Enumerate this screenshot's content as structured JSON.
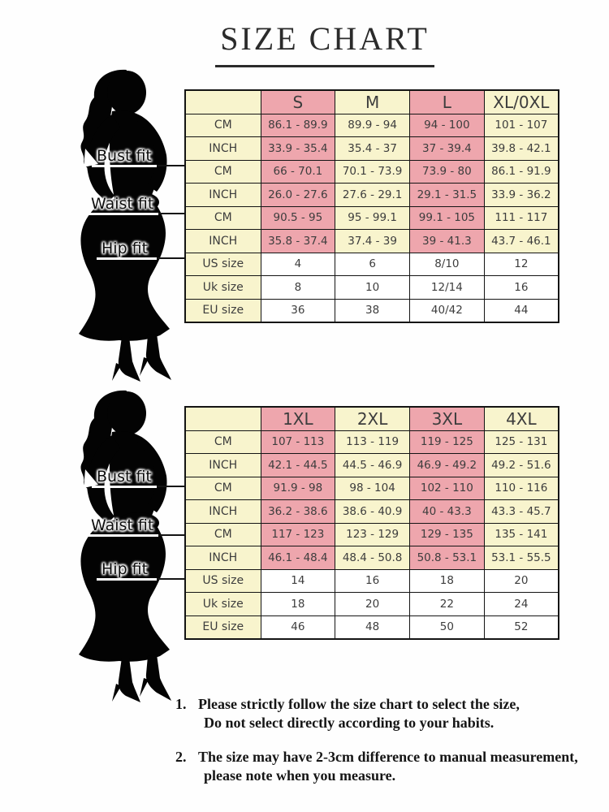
{
  "title": "SIZE CHART",
  "colors": {
    "pink": "#eea6ad",
    "yellow": "#f8f4cd",
    "white": "#ffffff",
    "border": "#141414"
  },
  "fit_labels": [
    "Bust fit",
    "Waist fit",
    "Hip fit"
  ],
  "figure_icon": "woman-dress-silhouette-icon",
  "chart_data": [
    {
      "type": "table",
      "size_columns": [
        "S",
        "M",
        "L",
        "XL/0XL"
      ],
      "rows": [
        {
          "group": "bust",
          "label": "CM",
          "values": [
            "86.1 - 89.9",
            "89.9 - 94",
            "94 - 100",
            "101 - 107"
          ]
        },
        {
          "group": "bust",
          "label": "INCH",
          "values": [
            "33.9 - 35.4",
            "35.4 - 37",
            "37 - 39.4",
            "39.8 - 42.1"
          ]
        },
        {
          "group": "waist",
          "label": "CM",
          "values": [
            "66 - 70.1",
            "70.1 - 73.9",
            "73.9 - 80",
            "86.1 - 91.9"
          ]
        },
        {
          "group": "waist",
          "label": "INCH",
          "values": [
            "26.0 - 27.6",
            "27.6 - 29.1",
            "29.1 - 31.5",
            "33.9 - 36.2"
          ]
        },
        {
          "group": "hip",
          "label": "CM",
          "values": [
            "90.5 - 95",
            "95 - 99.1",
            "99.1 - 105",
            "111 - 117"
          ]
        },
        {
          "group": "hip",
          "label": "INCH",
          "values": [
            "35.8 - 37.4",
            "37.4 - 39",
            "39 - 41.3",
            "43.7 - 46.1"
          ]
        },
        {
          "group": "size",
          "label": "US size",
          "values": [
            "4",
            "6",
            "8/10",
            "12"
          ]
        },
        {
          "group": "size",
          "label": "Uk size",
          "values": [
            "8",
            "10",
            "12/14",
            "16"
          ]
        },
        {
          "group": "size",
          "label": "EU size",
          "values": [
            "36",
            "38",
            "40/42",
            "44"
          ]
        }
      ]
    },
    {
      "type": "table",
      "size_columns": [
        "1XL",
        "2XL",
        "3XL",
        "4XL"
      ],
      "rows": [
        {
          "group": "bust",
          "label": "CM",
          "values": [
            "107 - 113",
            "113 - 119",
            "119 - 125",
            "125 - 131"
          ]
        },
        {
          "group": "bust",
          "label": "INCH",
          "values": [
            "42.1 - 44.5",
            "44.5 - 46.9",
            "46.9 - 49.2",
            "49.2 - 51.6"
          ]
        },
        {
          "group": "waist",
          "label": "CM",
          "values": [
            "91.9 - 98",
            "98 - 104",
            "102 - 110",
            "110 - 116"
          ]
        },
        {
          "group": "waist",
          "label": "INCH",
          "values": [
            "36.2 - 38.6",
            "38.6 - 40.9",
            "40 - 43.3",
            "43.3 - 45.7"
          ]
        },
        {
          "group": "hip",
          "label": "CM",
          "values": [
            "117 - 123",
            "123 - 129",
            "129 - 135",
            "135 - 141"
          ]
        },
        {
          "group": "hip",
          "label": "INCH",
          "values": [
            "46.1 - 48.4",
            "48.4 - 50.8",
            "50.8 - 53.1",
            "53.1 - 55.5"
          ]
        },
        {
          "group": "size",
          "label": "US size",
          "values": [
            "14",
            "16",
            "18",
            "20"
          ]
        },
        {
          "group": "size",
          "label": "Uk size",
          "values": [
            "18",
            "20",
            "22",
            "24"
          ]
        },
        {
          "group": "size",
          "label": "EU size",
          "values": [
            "46",
            "48",
            "50",
            "52"
          ]
        }
      ]
    }
  ],
  "notes": [
    {
      "number": "1.",
      "lines": [
        "Please strictly follow the size chart to select the size,",
        "Do not select directly according to your habits."
      ]
    },
    {
      "number": "2.",
      "lines": [
        "The size may have 2-3cm difference  to manual measurement,",
        "please note when you measure."
      ]
    }
  ]
}
